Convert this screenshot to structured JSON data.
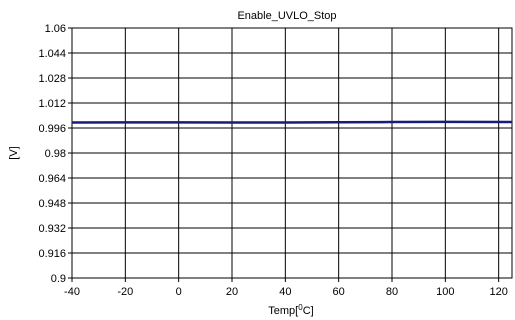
{
  "chart_data": {
    "type": "line",
    "title": "Enable_UVLO_Stop",
    "xlabel": "Temp[°C]",
    "xlabel_parts": {
      "prefix": "Temp[",
      "superscript": "0",
      "suffix": "C]"
    },
    "ylabel": "[V]",
    "xlim": [
      -40,
      125
    ],
    "ylim": [
      0.9,
      1.06
    ],
    "x_ticks": [
      -40,
      -20,
      0,
      20,
      40,
      60,
      80,
      100,
      120
    ],
    "x_tick_labels": [
      "-40",
      "-20",
      "0",
      "20",
      "40",
      "60",
      "80",
      "100",
      "120"
    ],
    "y_ticks": [
      0.9,
      0.916,
      0.932,
      0.948,
      0.964,
      0.98,
      0.996,
      1.012,
      1.028,
      1.044,
      1.06
    ],
    "y_tick_labels": [
      "0.9",
      "0.916",
      "0.932",
      "0.948",
      "0.964",
      "0.98",
      "0.996",
      "1.012",
      "1.028",
      "1.044",
      "1.06"
    ],
    "grid": true,
    "colors": {
      "series": "#1a1a7a",
      "grid": "#000000",
      "frame": "#000000"
    },
    "series": [
      {
        "x": [
          -40,
          -20,
          0,
          20,
          40,
          60,
          80,
          100,
          125
        ],
        "values": [
          0.9995,
          0.9996,
          0.9996,
          0.9995,
          0.9995,
          0.9997,
          0.9998,
          0.9999,
          0.9998
        ]
      }
    ]
  }
}
